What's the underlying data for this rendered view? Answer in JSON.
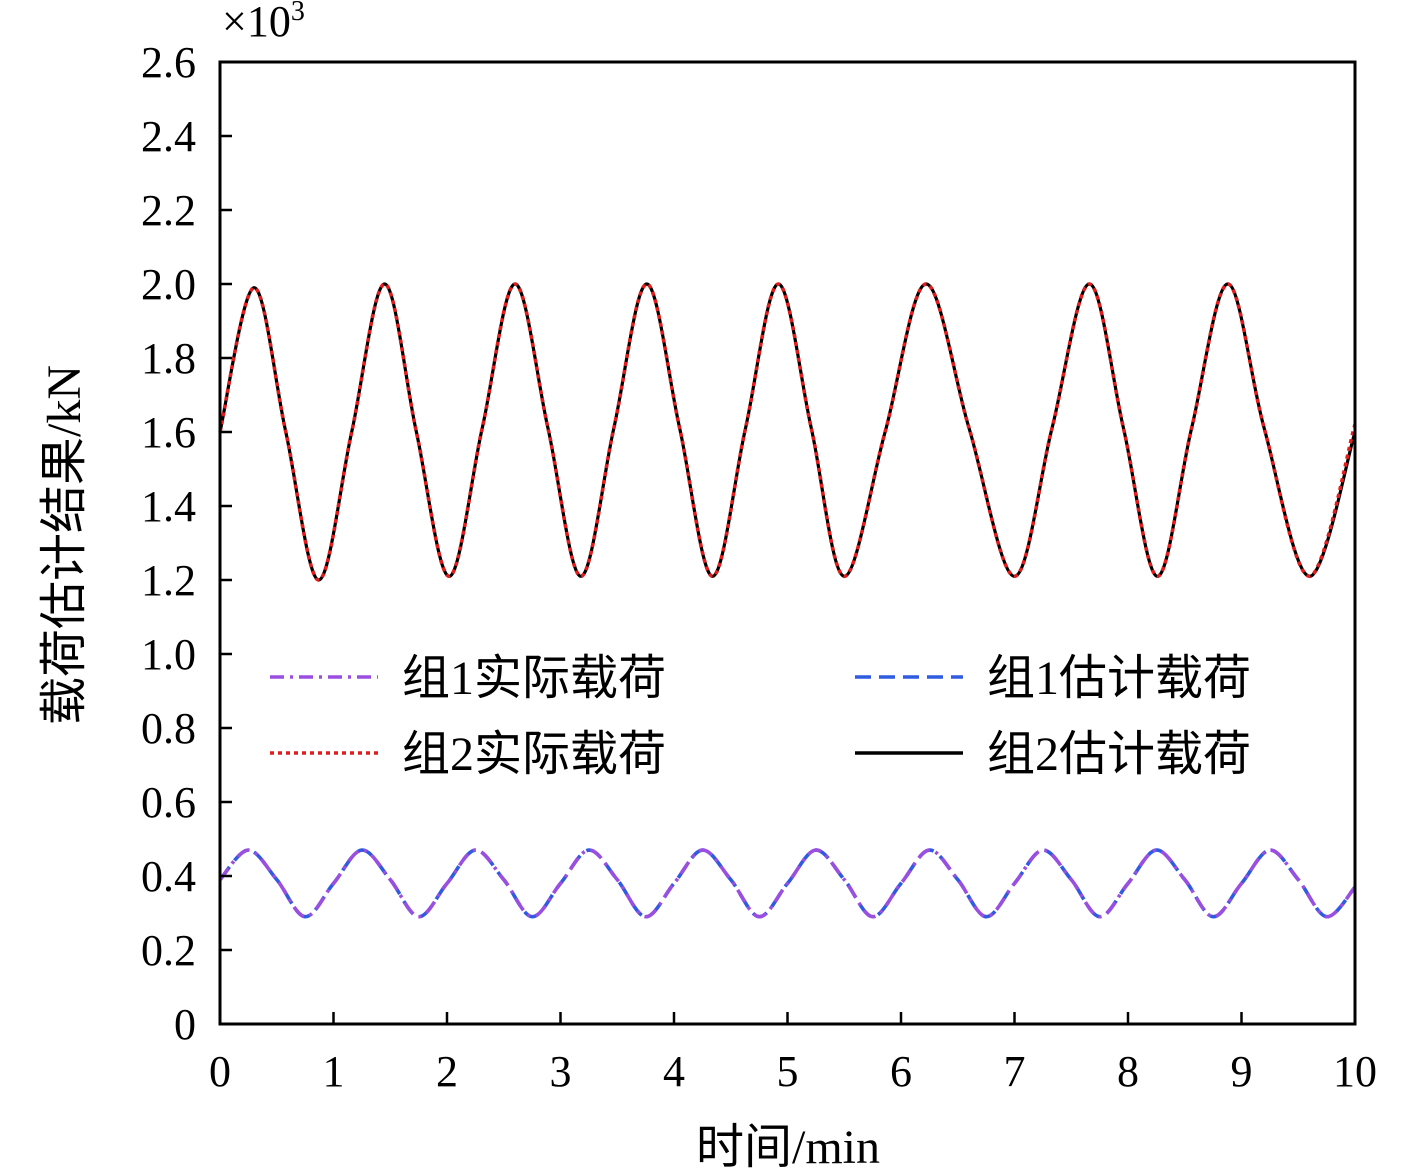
{
  "chart_data": {
    "type": "line",
    "title": "",
    "xlabel": "时间/min",
    "ylabel": "载荷估计结果/kN",
    "y_scale_label": "×10",
    "y_scale_exponent": "3",
    "xlim": [
      0,
      10
    ],
    "ylim": [
      0,
      2.6
    ],
    "x_ticks": [
      0,
      1,
      2,
      3,
      4,
      5,
      6,
      7,
      8,
      9,
      10
    ],
    "x_tick_labels": [
      "0",
      "1",
      "2",
      "3",
      "4",
      "5",
      "6",
      "7",
      "8",
      "9",
      "10"
    ],
    "y_ticks": [
      0,
      0.2,
      0.4,
      0.6,
      0.8,
      1.0,
      1.2,
      1.4,
      1.6,
      1.8,
      2.0,
      2.2,
      2.4,
      2.6
    ],
    "y_tick_labels": [
      "0",
      "0.2",
      "0.4",
      "0.6",
      "0.8",
      "1.0",
      "1.2",
      "1.4",
      "1.6",
      "1.8",
      "2.0",
      "2.2",
      "2.4",
      "2.6"
    ],
    "grid": false,
    "legend_position": "center",
    "series": [
      {
        "name": "组1实际载荷",
        "color": "#9b4fe0",
        "dash": "dash-dot",
        "x": [
          0,
          0.25,
          0.5,
          0.75,
          1.0,
          1.25,
          1.5,
          1.75,
          2.0,
          2.25,
          2.5,
          2.75,
          3.0,
          3.25,
          3.5,
          3.75,
          4.0,
          4.25,
          4.5,
          4.75,
          5.0,
          5.25,
          5.5,
          5.75,
          6.0,
          6.25,
          6.5,
          6.75,
          7.0,
          7.25,
          7.5,
          7.75,
          8.0,
          8.25,
          8.5,
          8.75,
          9.0,
          9.25,
          9.5,
          9.75,
          10.0
        ],
        "y": [
          0.39,
          0.47,
          0.39,
          0.29,
          0.38,
          0.47,
          0.39,
          0.29,
          0.38,
          0.47,
          0.39,
          0.29,
          0.38,
          0.47,
          0.39,
          0.29,
          0.38,
          0.47,
          0.39,
          0.29,
          0.38,
          0.47,
          0.39,
          0.29,
          0.38,
          0.47,
          0.39,
          0.29,
          0.38,
          0.47,
          0.39,
          0.29,
          0.38,
          0.47,
          0.39,
          0.29,
          0.38,
          0.47,
          0.39,
          0.29,
          0.37
        ]
      },
      {
        "name": "组1估计载荷",
        "color": "#2f5be0",
        "dash": "dashed",
        "x": [
          0,
          0.25,
          0.5,
          0.75,
          1.0,
          1.25,
          1.5,
          1.75,
          2.0,
          2.25,
          2.5,
          2.75,
          3.0,
          3.25,
          3.5,
          3.75,
          4.0,
          4.25,
          4.5,
          4.75,
          5.0,
          5.25,
          5.5,
          5.75,
          6.0,
          6.25,
          6.5,
          6.75,
          7.0,
          7.25,
          7.5,
          7.75,
          8.0,
          8.25,
          8.5,
          8.75,
          9.0,
          9.25,
          9.5,
          9.75,
          10.0
        ],
        "y": [
          0.39,
          0.47,
          0.39,
          0.29,
          0.38,
          0.47,
          0.39,
          0.29,
          0.38,
          0.47,
          0.39,
          0.29,
          0.38,
          0.47,
          0.39,
          0.29,
          0.38,
          0.47,
          0.39,
          0.29,
          0.38,
          0.47,
          0.39,
          0.29,
          0.38,
          0.47,
          0.39,
          0.29,
          0.38,
          0.47,
          0.39,
          0.29,
          0.38,
          0.47,
          0.39,
          0.29,
          0.38,
          0.47,
          0.39,
          0.29,
          0.37
        ]
      },
      {
        "name": "组2实际载荷",
        "color": "#e01e1e",
        "dash": "dotted",
        "x": [
          0,
          0.3,
          0.58,
          0.87,
          1.16,
          1.45,
          1.73,
          2.02,
          2.31,
          2.6,
          2.89,
          3.18,
          3.47,
          3.76,
          4.05,
          4.34,
          4.63,
          4.92,
          5.21,
          5.5,
          5.86,
          6.22,
          6.6,
          7.0,
          7.33,
          7.66,
          7.96,
          8.26,
          8.56,
          8.88,
          9.2,
          9.6,
          10.0
        ],
        "y": [
          1.6,
          1.99,
          1.6,
          1.2,
          1.6,
          2.0,
          1.6,
          1.21,
          1.61,
          2.0,
          1.61,
          1.21,
          1.61,
          2.0,
          1.61,
          1.21,
          1.61,
          2.0,
          1.61,
          1.21,
          1.6,
          2.0,
          1.61,
          1.21,
          1.61,
          2.0,
          1.61,
          1.21,
          1.61,
          2.0,
          1.61,
          1.21,
          1.62
        ]
      },
      {
        "name": "组2估计载荷",
        "color": "#000000",
        "dash": "solid",
        "x": [
          0,
          0.3,
          0.58,
          0.87,
          1.16,
          1.45,
          1.73,
          2.02,
          2.31,
          2.6,
          2.89,
          3.18,
          3.47,
          3.76,
          4.05,
          4.34,
          4.63,
          4.92,
          5.21,
          5.5,
          5.86,
          6.22,
          6.6,
          7.0,
          7.33,
          7.66,
          7.96,
          8.26,
          8.56,
          8.88,
          9.2,
          9.6,
          10.0
        ],
        "y": [
          1.6,
          1.99,
          1.6,
          1.2,
          1.6,
          2.0,
          1.6,
          1.21,
          1.61,
          2.0,
          1.61,
          1.21,
          1.61,
          2.0,
          1.61,
          1.21,
          1.61,
          2.0,
          1.61,
          1.21,
          1.6,
          2.0,
          1.61,
          1.21,
          1.61,
          2.0,
          1.61,
          1.21,
          1.61,
          2.0,
          1.61,
          1.21,
          1.6
        ]
      }
    ]
  }
}
